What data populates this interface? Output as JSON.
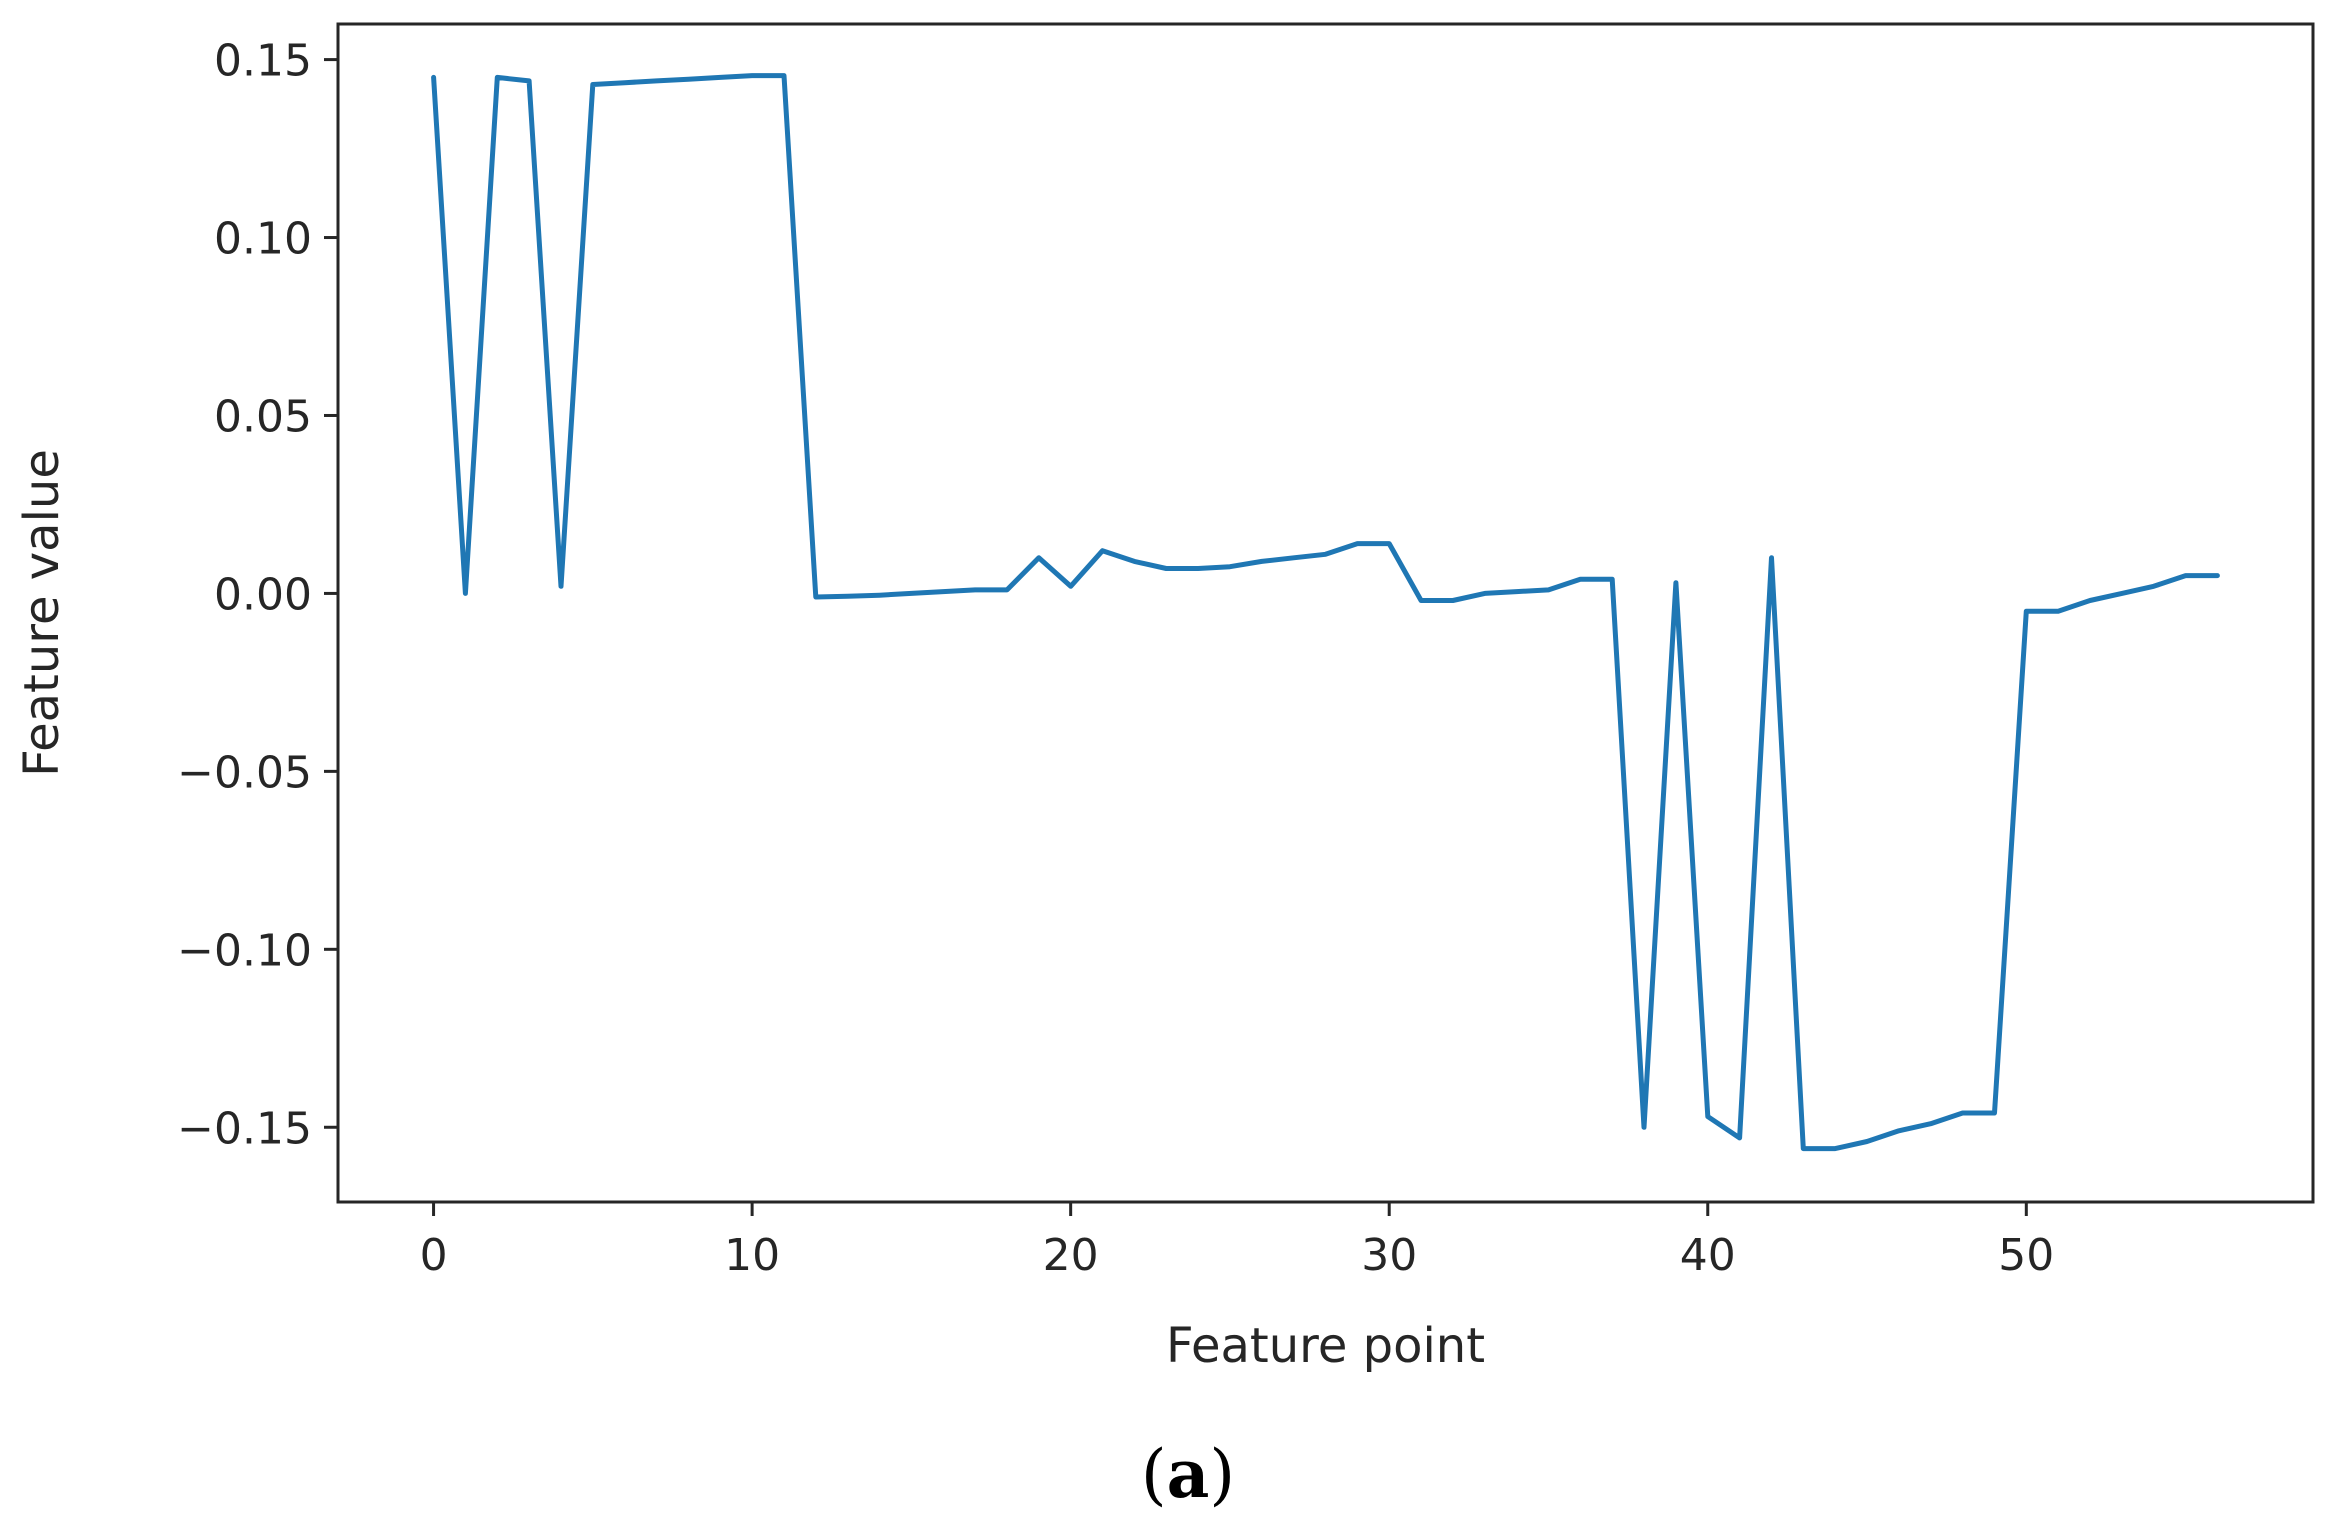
{
  "chart_data": {
    "type": "line",
    "xlabel": "Feature point",
    "ylabel": "Feature value",
    "panel_label": {
      "open": "(",
      "letter": "a",
      "close": ")"
    },
    "xlim": [
      -3,
      59
    ],
    "ylim": [
      -0.171,
      0.16
    ],
    "xticks": [
      0,
      10,
      20,
      30,
      40,
      50
    ],
    "xtick_labels": [
      "0",
      "10",
      "20",
      "30",
      "40",
      "50"
    ],
    "yticks": [
      0.15,
      0.1,
      0.05,
      0.0,
      -0.05,
      -0.1,
      -0.15
    ],
    "ytick_labels": [
      "0.15",
      "0.10",
      "0.05",
      "0.00",
      "−0.05",
      "−0.10",
      "−0.15"
    ],
    "grid": false,
    "line_color": "#1f77b4",
    "series": [
      {
        "x": [
          0,
          1,
          2,
          3,
          4,
          5,
          6,
          7,
          8,
          9,
          10,
          11,
          12,
          13,
          14,
          15,
          16,
          17,
          18,
          19,
          20,
          21,
          22,
          23,
          24,
          25,
          26,
          27,
          28,
          29,
          30,
          31,
          32,
          33,
          34,
          35,
          36,
          37,
          38,
          39,
          40,
          41,
          42,
          43,
          44,
          45,
          46,
          47,
          48,
          49,
          50,
          51,
          52,
          53,
          54,
          55,
          56
        ],
        "y": [
          0.145,
          0.0,
          0.145,
          0.144,
          0.002,
          0.143,
          0.1435,
          0.144,
          0.1445,
          0.145,
          0.1455,
          0.1455,
          -0.001,
          -0.0008,
          -0.0005,
          0.0,
          0.0005,
          0.001,
          0.001,
          0.01,
          0.002,
          0.012,
          0.009,
          0.007,
          0.007,
          0.0075,
          0.009,
          0.01,
          0.011,
          0.014,
          0.014,
          -0.002,
          -0.002,
          0.0,
          0.0005,
          0.001,
          0.004,
          0.004,
          -0.15,
          0.003,
          -0.147,
          -0.153,
          0.01,
          -0.156,
          -0.156,
          -0.154,
          -0.151,
          -0.149,
          -0.146,
          -0.146,
          -0.005,
          -0.005,
          -0.002,
          0.0,
          0.002,
          0.005,
          0.005
        ]
      }
    ]
  }
}
